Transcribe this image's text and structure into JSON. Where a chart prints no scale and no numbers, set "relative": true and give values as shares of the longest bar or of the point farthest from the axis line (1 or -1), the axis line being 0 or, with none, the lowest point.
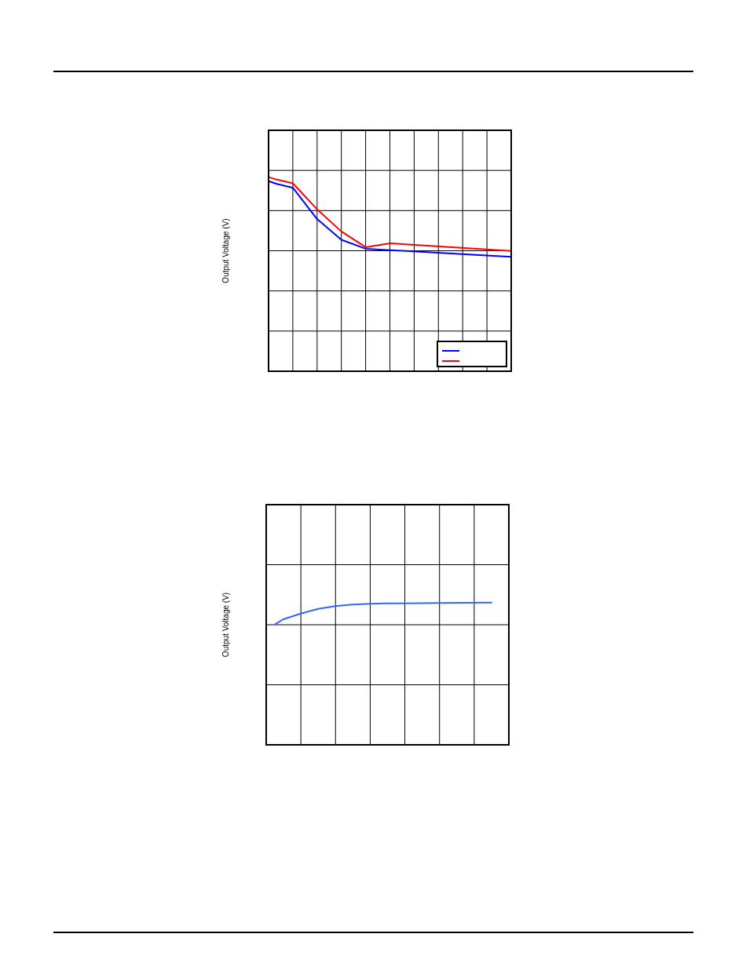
{
  "chart_data": [
    {
      "type": "line",
      "ylabel": "Output Voltage (V)",
      "relative": true,
      "grid": true,
      "marker": "none",
      "line_style": "solid",
      "categories": [
        null,
        null,
        null,
        null,
        null,
        null,
        null,
        null,
        null,
        null,
        null,
        null,
        null,
        null,
        null,
        null,
        null,
        null,
        null,
        null,
        null,
        null,
        null,
        null,
        null,
        null,
        null,
        null,
        null,
        null,
        null
      ],
      "series": [
        {
          "color": "#0000ff",
          "values": [
            0.979,
            0.965,
            null,
            0.945,
            null,
            null,
            0.784,
            null,
            null,
            0.677,
            null,
            null,
            0.631,
            null,
            null,
            0.624,
            null,
            null,
            null,
            null,
            null,
            null,
            null,
            null,
            null,
            null,
            null,
            null,
            null,
            null,
            0.589
          ]
        },
        {
          "color": "#ff0000",
          "values": [
            1,
            0.987,
            null,
            0.968,
            null,
            null,
            0.834,
            null,
            null,
            0.72,
            null,
            null,
            0.639,
            null,
            null,
            0.659,
            null,
            null,
            null,
            null,
            null,
            null,
            null,
            null,
            null,
            null,
            null,
            null,
            null,
            null,
            0.619
          ]
        }
      ]
    },
    {
      "type": "line",
      "ylabel": "Output Voltage (V)",
      "relative": true,
      "grid": true,
      "marker": "none",
      "line_style": "solid",
      "categories": [
        null,
        null,
        null,
        null,
        null,
        null,
        null,
        null,
        null,
        null,
        null,
        null,
        null,
        null,
        null,
        null,
        null,
        null,
        null,
        null,
        null,
        null,
        null,
        null,
        null,
        null,
        null,
        null,
        null
      ],
      "series": [
        {
          "color": "#3366ff",
          "values": [
            null,
            0.846,
            0.883,
            null,
            0.923,
            null,
            0.956,
            null,
            0.975,
            null,
            0.986,
            null,
            0.991,
            null,
            0.994,
            null,
            0.994,
            null,
            null,
            null,
            0.997,
            null,
            null,
            null,
            null,
            null,
            1,
            null,
            null
          ]
        }
      ]
    }
  ]
}
